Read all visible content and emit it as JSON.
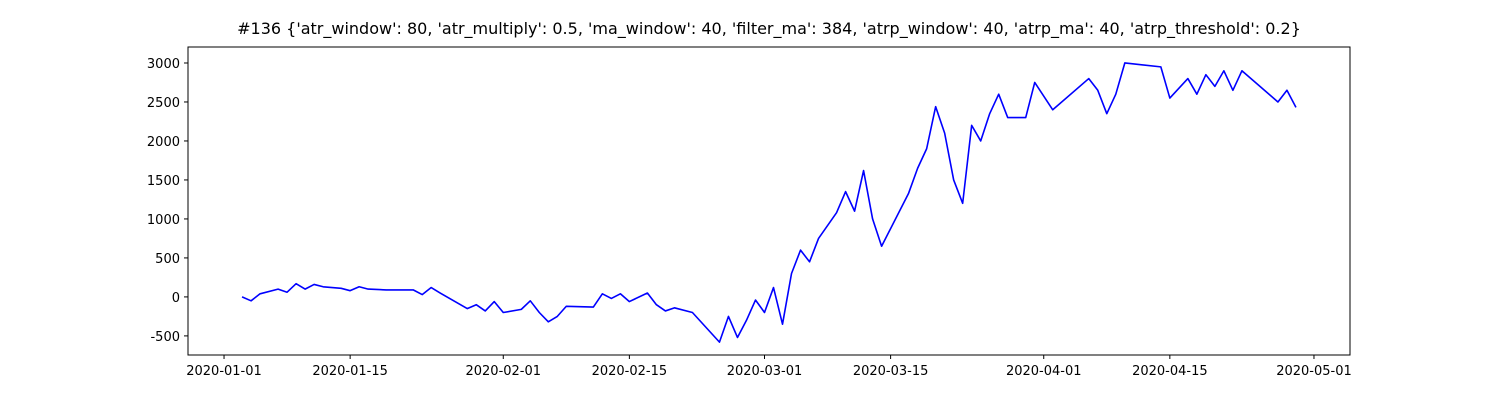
{
  "chart_data": {
    "type": "line",
    "title": "#136 {'atr_window': 80, 'atr_multiply': 0.5, 'ma_window': 40, 'filter_ma': 384, 'atrp_window': 40, 'atrp_ma': 40, 'atrp_threshold': 0.2}",
    "x": [
      "2020-01-03",
      "2020-01-04",
      "2020-01-05",
      "2020-01-07",
      "2020-01-08",
      "2020-01-09",
      "2020-01-10",
      "2020-01-11",
      "2020-01-12",
      "2020-01-14",
      "2020-01-15",
      "2020-01-16",
      "2020-01-17",
      "2020-01-19",
      "2020-01-22",
      "2020-01-23",
      "2020-01-24",
      "2020-01-25",
      "2020-01-28",
      "2020-01-29",
      "2020-01-30",
      "2020-01-31",
      "2020-02-01",
      "2020-02-03",
      "2020-02-04",
      "2020-02-05",
      "2020-02-06",
      "2020-02-07",
      "2020-02-08",
      "2020-02-11",
      "2020-02-12",
      "2020-02-13",
      "2020-02-14",
      "2020-02-15",
      "2020-02-17",
      "2020-02-18",
      "2020-02-19",
      "2020-02-20",
      "2020-02-22",
      "2020-02-25",
      "2020-02-26",
      "2020-02-27",
      "2020-02-28",
      "2020-02-29",
      "2020-03-01",
      "2020-03-02",
      "2020-03-03",
      "2020-03-04",
      "2020-03-05",
      "2020-03-06",
      "2020-03-07",
      "2020-03-09",
      "2020-03-10",
      "2020-03-11",
      "2020-03-12",
      "2020-03-13",
      "2020-03-14",
      "2020-03-17",
      "2020-03-18",
      "2020-03-19",
      "2020-03-20",
      "2020-03-21",
      "2020-03-22",
      "2020-03-23",
      "2020-03-24",
      "2020-03-25",
      "2020-03-26",
      "2020-03-27",
      "2020-03-28",
      "2020-03-30",
      "2020-03-31",
      "2020-04-02",
      "2020-04-06",
      "2020-04-07",
      "2020-04-08",
      "2020-04-09",
      "2020-04-10",
      "2020-04-14",
      "2020-04-15",
      "2020-04-17",
      "2020-04-18",
      "2020-04-19",
      "2020-04-20",
      "2020-04-21",
      "2020-04-22",
      "2020-04-23",
      "2020-04-27",
      "2020-04-28",
      "2020-04-29"
    ],
    "series": [
      {
        "color": "blue",
        "values": [
          0,
          -50,
          40,
          100,
          60,
          170,
          100,
          160,
          130,
          110,
          80,
          130,
          100,
          90,
          90,
          30,
          120,
          50,
          -150,
          -100,
          -180,
          -60,
          -200,
          -160,
          -50,
          -200,
          -320,
          -250,
          -120,
          -130,
          40,
          -20,
          40,
          -60,
          50,
          -100,
          -180,
          -140,
          -200,
          -580,
          -250,
          -520,
          -300,
          -40,
          -200,
          120,
          -350,
          300,
          600,
          450,
          750,
          1080,
          1350,
          1100,
          1620,
          1000,
          650,
          1330,
          1650,
          1900,
          2440,
          2100,
          1500,
          1200,
          2200,
          2000,
          2350,
          2600,
          2300,
          2300,
          2750,
          2400,
          2800,
          2650,
          2350,
          2600,
          3000,
          2950,
          2550,
          2800,
          2600,
          2850,
          2700,
          2900,
          2650,
          2900,
          2500,
          2650,
          2430
        ]
      }
    ],
    "xlim": [
      "2019-12-28",
      "2020-05-05"
    ],
    "xticks": [
      "2020-01-01",
      "2020-01-15",
      "2020-02-01",
      "2020-02-15",
      "2020-03-01",
      "2020-03-15",
      "2020-04-01",
      "2020-04-15",
      "2020-05-01"
    ],
    "ylim": [
      -745,
      3205
    ],
    "yticks": [
      -500,
      0,
      500,
      1000,
      1500,
      2000,
      2500,
      3000
    ],
    "grid": false
  }
}
